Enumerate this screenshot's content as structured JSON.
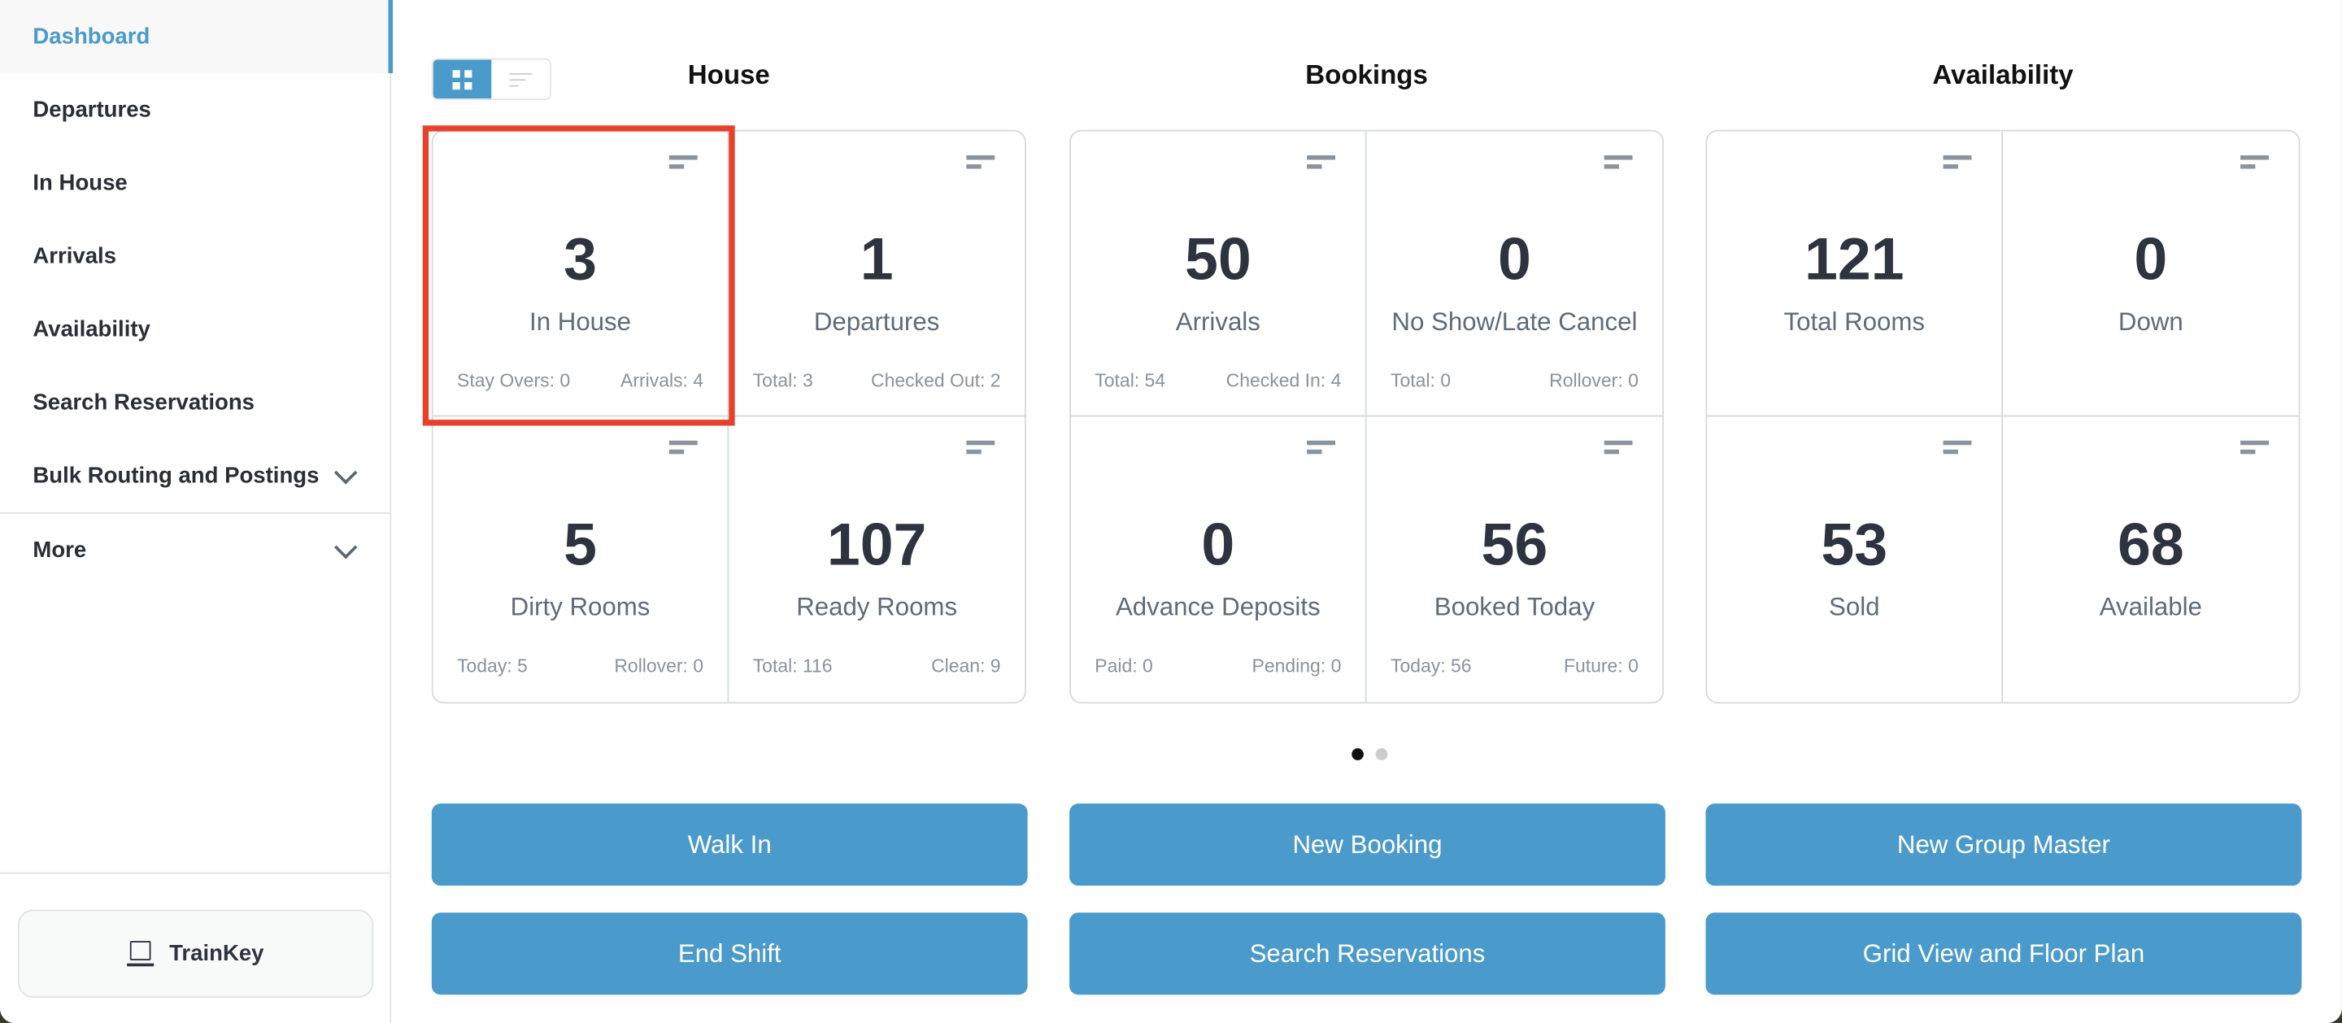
{
  "sidebar": {
    "items": [
      {
        "label": "Dashboard",
        "active": true
      },
      {
        "label": "Departures"
      },
      {
        "label": "In House"
      },
      {
        "label": "Arrivals"
      },
      {
        "label": "Availability"
      },
      {
        "label": "Search Reservations"
      },
      {
        "label": "Bulk Routing and Postings",
        "expandable": true
      },
      {
        "label": "More",
        "expandable": true
      }
    ],
    "trainkey_label": "TrainKey"
  },
  "view_toggle": {
    "selected": "grid",
    "options": [
      "grid",
      "list"
    ]
  },
  "columns": [
    {
      "title": "House",
      "cells": [
        {
          "value": "3",
          "label": "In House",
          "left": "Stay Overs: 0",
          "right": "Arrivals: 4",
          "highlighted": true
        },
        {
          "value": "1",
          "label": "Departures",
          "left": "Total: 3",
          "right": "Checked Out: 2"
        },
        {
          "value": "5",
          "label": "Dirty Rooms",
          "left": "Today: 5",
          "right": "Rollover: 0"
        },
        {
          "value": "107",
          "label": "Ready Rooms",
          "left": "Total: 116",
          "right": "Clean: 9"
        }
      ]
    },
    {
      "title": "Bookings",
      "cells": [
        {
          "value": "50",
          "label": "Arrivals",
          "left": "Total: 54",
          "right": "Checked In: 4"
        },
        {
          "value": "0",
          "label": "No Show/Late Cancel",
          "left": "Total: 0",
          "right": "Rollover: 0"
        },
        {
          "value": "0",
          "label": "Advance Deposits",
          "left": "Paid: 0",
          "right": "Pending: 0"
        },
        {
          "value": "56",
          "label": "Booked Today",
          "left": "Today: 56",
          "right": "Future: 0"
        }
      ]
    },
    {
      "title": "Availability",
      "cells": [
        {
          "value": "121",
          "label": "Total Rooms",
          "left": "",
          "right": ""
        },
        {
          "value": "0",
          "label": "Down",
          "left": "",
          "right": ""
        },
        {
          "value": "53",
          "label": "Sold",
          "left": "",
          "right": ""
        },
        {
          "value": "68",
          "label": "Available",
          "left": "",
          "right": ""
        }
      ]
    }
  ],
  "pager": {
    "current": 1,
    "total": 2
  },
  "actions": [
    [
      "Walk In",
      "New Booking",
      "New Group Master"
    ],
    [
      "End Shift",
      "Search Reservations",
      "Grid View and Floor Plan"
    ]
  ],
  "colors": {
    "accent": "#4a9acc",
    "highlight": "#e8412b",
    "text": "#2d3440"
  }
}
